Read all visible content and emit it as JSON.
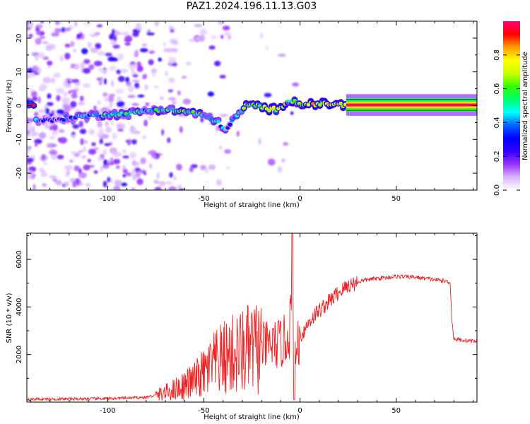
{
  "title": "PAZ1.2024.196.11.13.G03",
  "chart_data": [
    {
      "type": "heatmap",
      "xlabel": "Height of straight line (km)",
      "ylabel": "Frequency (Hz)",
      "xlim": [
        -142,
        92
      ],
      "ylim": [
        -25,
        25
      ],
      "xticks": [
        -100,
        -50,
        0,
        50
      ],
      "yticks": [
        -20,
        -10,
        0,
        10,
        20
      ],
      "colorbar": {
        "label": "Normalized spectral amplitude",
        "range": [
          0,
          1
        ],
        "ticks": [
          0.0,
          0.2,
          0.4,
          0.6,
          0.8
        ],
        "colors": [
          "#ffffff",
          "#d9b3ff",
          "#9933ff",
          "#3300ff",
          "#0000ff",
          "#0066ff",
          "#00ffff",
          "#00ff66",
          "#33ff00",
          "#ccff00",
          "#ffff00",
          "#ff9900",
          "#ff0000",
          "#ff0077"
        ]
      },
      "ridge": [
        {
          "x": -138,
          "f": -4.0,
          "a": 0.35
        },
        {
          "x": -130,
          "f": -4.5,
          "a": 0.3
        },
        {
          "x": -120,
          "f": -3.5,
          "a": 0.35
        },
        {
          "x": -110,
          "f": -3.0,
          "a": 0.4
        },
        {
          "x": -100,
          "f": -2.5,
          "a": 0.45
        },
        {
          "x": -90,
          "f": -2.5,
          "a": 0.45
        },
        {
          "x": -80,
          "f": -1.5,
          "a": 0.45
        },
        {
          "x": -72,
          "f": -1.0,
          "a": 0.5
        },
        {
          "x": -64,
          "f": -1.5,
          "a": 0.55
        },
        {
          "x": -56,
          "f": -2.0,
          "a": 0.55
        },
        {
          "x": -50,
          "f": -3.0,
          "a": 0.5
        },
        {
          "x": -44,
          "f": -4.5,
          "a": 0.45
        },
        {
          "x": -38,
          "f": -7.0,
          "a": 0.35
        },
        {
          "x": -33,
          "f": -3.0,
          "a": 0.45
        },
        {
          "x": -28,
          "f": 0.0,
          "a": 0.6
        },
        {
          "x": -22,
          "f": 0.0,
          "a": 0.6
        },
        {
          "x": -16,
          "f": -1.0,
          "a": 0.65
        },
        {
          "x": -10,
          "f": -1.0,
          "a": 0.65
        },
        {
          "x": -6,
          "f": 2.0,
          "a": 0.55
        },
        {
          "x": 0,
          "f": 0.5,
          "a": 0.7
        },
        {
          "x": 8,
          "f": 0.5,
          "a": 0.75
        },
        {
          "x": 16,
          "f": 0.5,
          "a": 0.7
        },
        {
          "x": 24,
          "f": 0.2,
          "a": 0.8
        },
        {
          "x": 92,
          "f": 0.2,
          "a": 1.0
        }
      ]
    },
    {
      "type": "line",
      "xlabel": "Height of straight line (km)",
      "ylabel": "SNR (10 * v/v)",
      "xlim": [
        -142,
        92
      ],
      "ylim": [
        0,
        7100
      ],
      "xticks": [
        -100,
        -50,
        0,
        50
      ],
      "yticks": [
        2000,
        4000,
        6000
      ],
      "series": [
        {
          "color": "#ee2222",
          "x": [
            -142,
            -120,
            -100,
            -90,
            -80,
            -75,
            -70,
            -65,
            -60,
            -55,
            -50,
            -46,
            -42,
            -38,
            -34,
            -30,
            -26,
            -22,
            -18,
            -14,
            -10,
            -7,
            -5,
            -4,
            -3,
            -1,
            2,
            5,
            8,
            12,
            16,
            20,
            25,
            30,
            35,
            40,
            50,
            60,
            70,
            78,
            79,
            80,
            85,
            92
          ],
          "y": [
            120,
            130,
            150,
            170,
            200,
            280,
            400,
            550,
            700,
            900,
            1200,
            1500,
            1700,
            1900,
            2000,
            2100,
            2200,
            2300,
            2350,
            2400,
            2450,
            2600,
            3400,
            3800,
            1500,
            2600,
            3000,
            3400,
            3700,
            4000,
            4300,
            4600,
            4900,
            5050,
            5150,
            5200,
            5280,
            5250,
            5150,
            5050,
            3400,
            2650,
            2600,
            2550
          ]
        }
      ]
    }
  ]
}
